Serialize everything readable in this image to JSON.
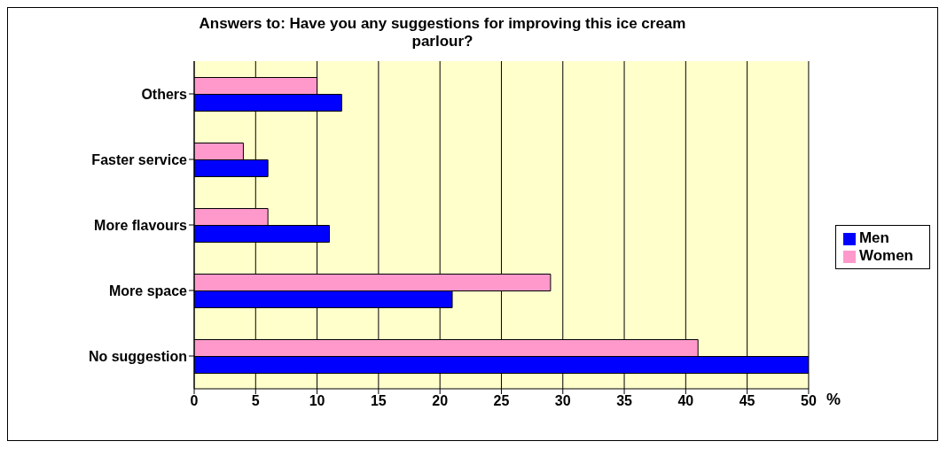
{
  "chart_data": {
    "type": "bar",
    "orientation": "horizontal",
    "title": "Answers to: Have you any suggestions for improving this ice cream parlour?",
    "xlabel": "%",
    "categories": [
      "Others",
      "Faster service",
      "More flavours",
      "More space",
      "No suggestion"
    ],
    "series": [
      {
        "name": "Women",
        "color": "#ff99cc",
        "values": [
          10,
          4,
          6,
          29,
          41
        ]
      },
      {
        "name": "Men",
        "color": "#0000ff",
        "values": [
          12,
          6,
          11,
          21,
          50
        ]
      }
    ],
    "xlim": [
      0,
      50
    ],
    "xticks": [
      0,
      5,
      10,
      15,
      20,
      25,
      30,
      35,
      40,
      45,
      50
    ],
    "grid": "x",
    "legend": "right"
  }
}
